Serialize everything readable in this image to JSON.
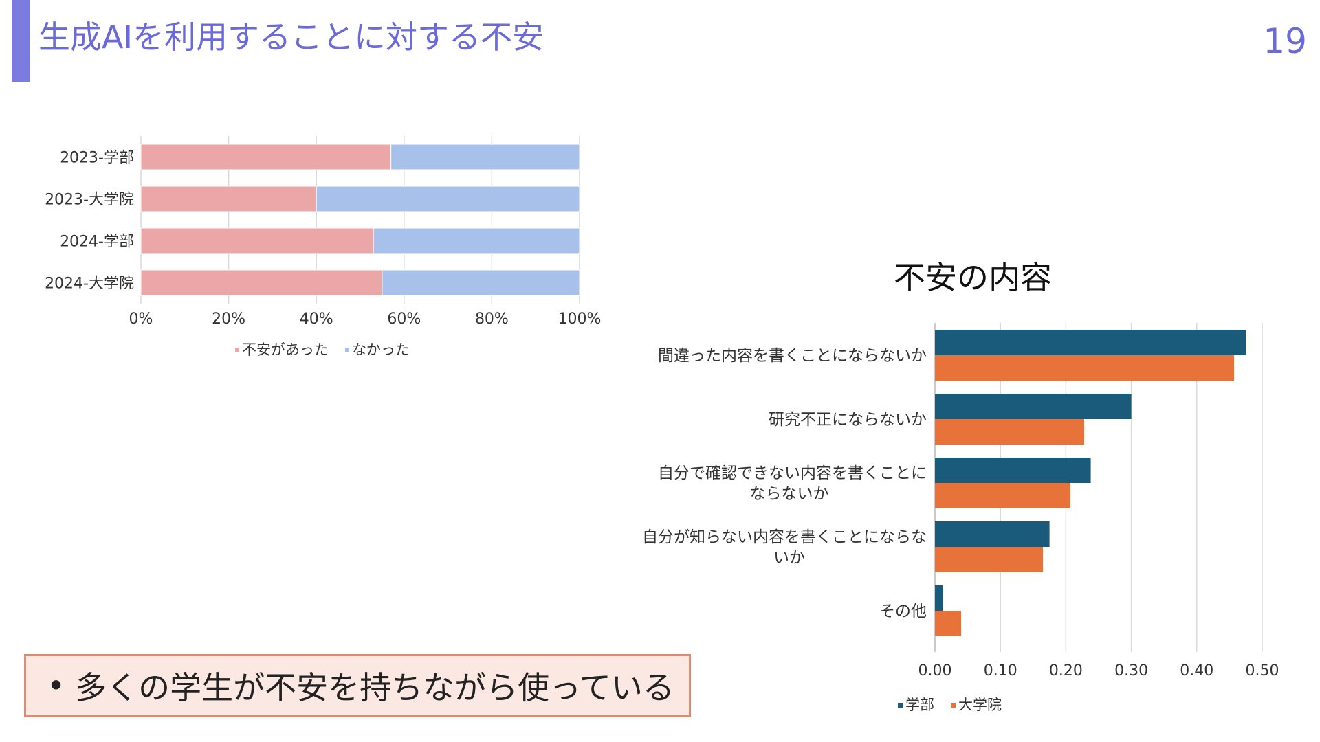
{
  "header": {
    "title": "生成AIを利用することに対する不安",
    "page_number": "19"
  },
  "colors": {
    "title": "#6a6ad8",
    "accent_bar": "#7b7be0",
    "anxious": "#eba6a8",
    "not_anxious": "#a8c1ea",
    "undergrad": "#1a5a7a",
    "graduate": "#e8733a",
    "grid": "#d9d9d9",
    "summary_bg": "#fce8e2",
    "summary_border": "#e08a72"
  },
  "chart_data": [
    {
      "type": "bar",
      "orientation": "horizontal",
      "stacked": true,
      "title": "",
      "categories": [
        "2023-学部",
        "2023-大学院",
        "2024-学部",
        "2024-大学院"
      ],
      "series": [
        {
          "name": "不安があった",
          "values": [
            57,
            40,
            53,
            55
          ]
        },
        {
          "name": "なかった",
          "values": [
            43,
            60,
            47,
            45
          ]
        }
      ],
      "xlim": [
        0,
        100
      ],
      "xticks": [
        "0%",
        "20%",
        "40%",
        "60%",
        "80%",
        "100%"
      ],
      "grid": true,
      "legend_position": "bottom"
    },
    {
      "type": "bar",
      "orientation": "horizontal",
      "stacked": false,
      "title": "不安の内容",
      "categories": [
        [
          "間違った内容を書くことにならないか"
        ],
        [
          "研究不正にならないか"
        ],
        [
          "自分で確認できない内容を書くことに",
          "ならないか"
        ],
        [
          "自分が知らない内容を書くことにならな",
          "いか"
        ],
        [
          "その他"
        ]
      ],
      "series": [
        {
          "name": "学部",
          "values": [
            0.475,
            0.3,
            0.238,
            0.175,
            0.012
          ]
        },
        {
          "name": "大学院",
          "values": [
            0.457,
            0.228,
            0.207,
            0.165,
            0.04
          ]
        }
      ],
      "xlim": [
        0,
        0.5
      ],
      "xticks": [
        "0.00",
        "0.10",
        "0.20",
        "0.30",
        "0.40",
        "0.50"
      ],
      "grid": true,
      "legend_position": "bottom"
    }
  ],
  "summary": {
    "bullet": "•",
    "text": "多くの学生が不安を持ちながら使っている"
  }
}
